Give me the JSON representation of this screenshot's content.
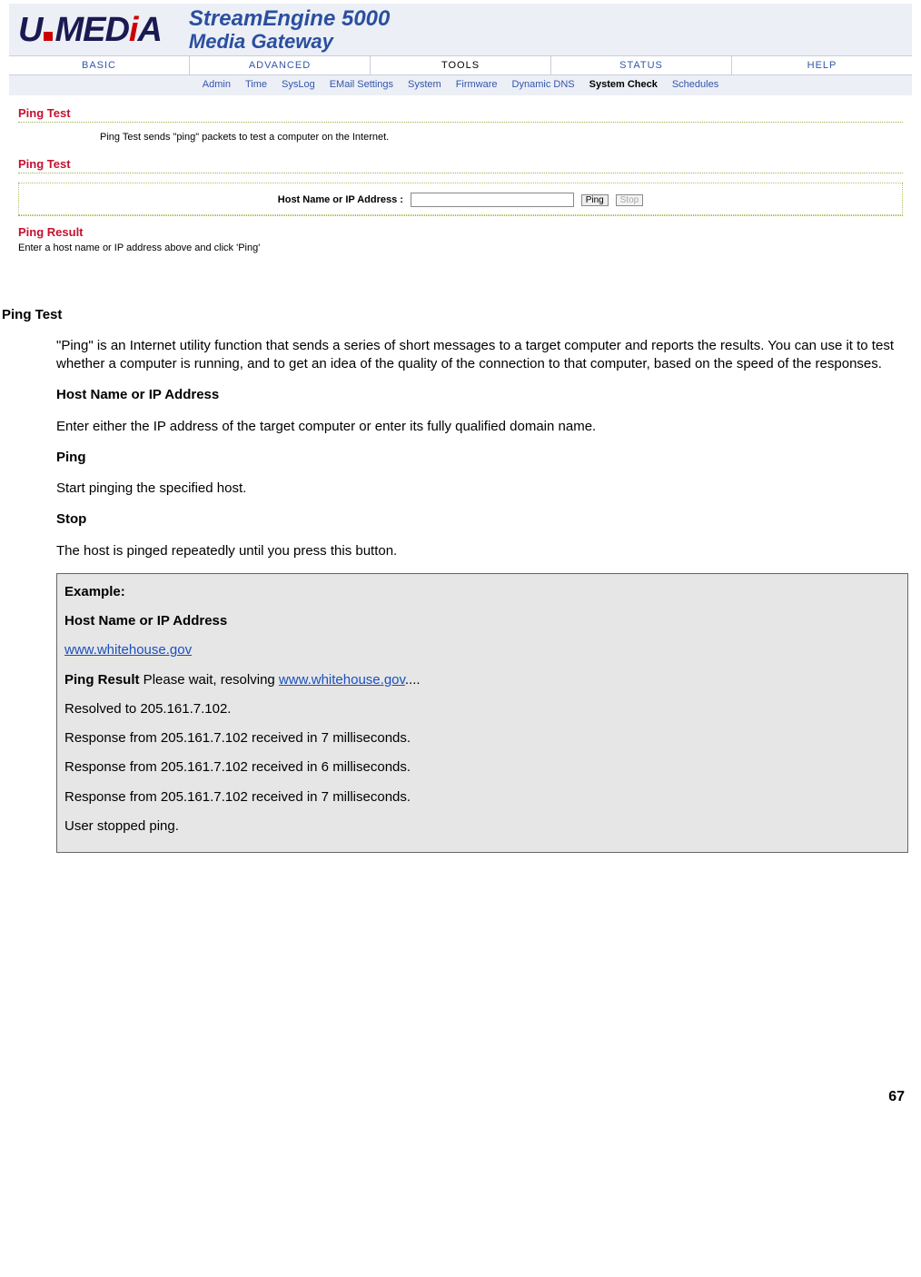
{
  "logo": {
    "left": "U",
    "right": "MED",
    "i": "i",
    "a": "A"
  },
  "product": {
    "line1": "StreamEngine 5000",
    "line2": "Media Gateway"
  },
  "main_nav": {
    "items": [
      "BASIC",
      "ADVANCED",
      "TOOLS",
      "STATUS",
      "HELP"
    ],
    "active_index": 2
  },
  "sub_nav": {
    "items": [
      "Admin",
      "Time",
      "SysLog",
      "EMail Settings",
      "System",
      "Firmware",
      "Dynamic DNS",
      "System Check",
      "Schedules"
    ],
    "active_index": 7
  },
  "page": {
    "title1": "Ping Test",
    "intro": "Ping Test sends \"ping\" packets to test a computer on the Internet.",
    "title2": "Ping Test",
    "form": {
      "label": "Host Name or IP Address :",
      "value": "",
      "ping_btn": "Ping",
      "stop_btn": "Stop"
    },
    "result_title": "Ping Result",
    "result_text": "Enter a host name or IP address above and click 'Ping'"
  },
  "doc": {
    "heading": "Ping Test",
    "p1": "\"Ping\" is an Internet utility function that sends a series of short messages to a target computer and reports the results. You can use it to test whether a computer is running, and to get an idea of the quality of the connection to that computer, based on the speed of the responses.",
    "sub1": "Host Name or IP Address",
    "p2": "Enter either the IP address of the target computer or enter its fully qualified domain name.",
    "sub2": "Ping",
    "p3": "Start pinging the specified host.",
    "sub3": "Stop",
    "p4": "The host is pinged repeatedly until you press this button.",
    "example": {
      "title": "Example:",
      "label": "Host Name or IP Address",
      "host_link": "www.whitehouse.gov",
      "result_label": "Ping Result",
      "result_wait": " Please wait, resolving ",
      "dots": "....",
      "lines": [
        "Resolved to 205.161.7.102.",
        "Response from 205.161.7.102 received in 7 milliseconds.",
        "Response from 205.161.7.102 received in 6 milliseconds.",
        "Response from 205.161.7.102 received in 7 milliseconds.",
        "User stopped ping."
      ]
    }
  },
  "page_number": "67",
  "colors": {
    "brand_blue": "#2a4f9e",
    "brand_red": "#c41230",
    "link_blue": "#1a4fc0",
    "panel_bg": "#eceff6",
    "dotted_green": "#9ab24a"
  }
}
